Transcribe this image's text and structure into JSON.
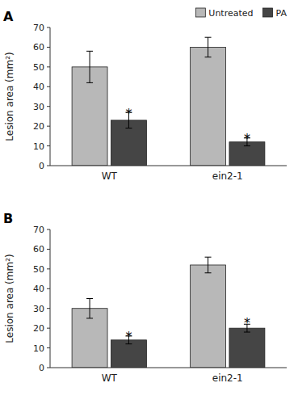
{
  "chart_data": [
    {
      "type": "bar",
      "title": "A",
      "y_label": "Lesion area (mm²)",
      "categories": [
        "WT",
        "ein2-1"
      ],
      "series": [
        {
          "name": "Untreated",
          "color": "#b8b8b8",
          "values": [
            50,
            60
          ],
          "errors": [
            8,
            5
          ]
        },
        {
          "name": "PA",
          "color": "#454545",
          "values": [
            23,
            12
          ],
          "errors": [
            4,
            2
          ]
        }
      ],
      "annotations": [
        {
          "text": "*",
          "category": "WT",
          "series": "PA",
          "y": 28
        },
        {
          "text": "*",
          "category": "ein2-1",
          "series": "PA",
          "y": 15
        }
      ],
      "ylim": [
        0,
        70
      ],
      "yticks": [
        0,
        10,
        20,
        30,
        40,
        50,
        60,
        70
      ],
      "grid": false,
      "legend": "top"
    },
    {
      "type": "bar",
      "title": "B",
      "y_label": "Lesion area (mm²)",
      "categories": [
        "WT",
        "ein2-1"
      ],
      "series": [
        {
          "color": "#b8b8b8",
          "values": [
            30,
            52
          ],
          "errors": [
            5,
            4
          ]
        },
        {
          "color": "#454545",
          "values": [
            14,
            20
          ],
          "errors": [
            2,
            2
          ]
        }
      ],
      "annotations": [
        {
          "text": "*",
          "category": "WT",
          "series": 1,
          "y": 17
        },
        {
          "text": "*",
          "category": "ein2-1",
          "series": 1,
          "y": 24
        }
      ],
      "ylim": [
        0,
        70
      ],
      "yticks": [
        0,
        10,
        20,
        30,
        40,
        50,
        60,
        70
      ],
      "grid": false
    }
  ]
}
